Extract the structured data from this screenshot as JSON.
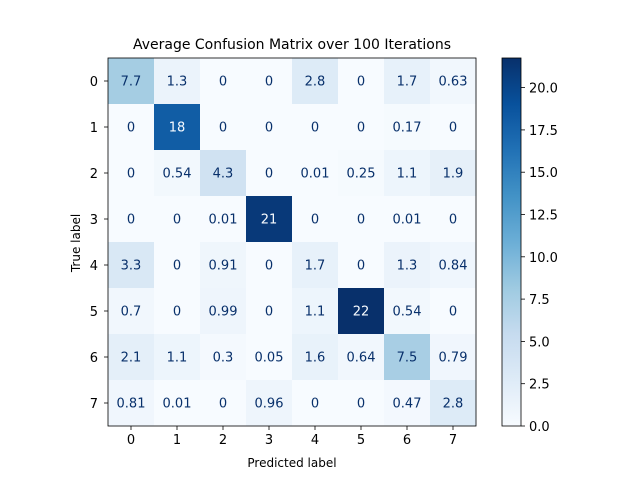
{
  "chart_data": {
    "type": "heatmap",
    "title": "Average Confusion Matrix over 100 Iterations",
    "xlabel": "Predicted label",
    "ylabel": "True label",
    "x_categories": [
      "0",
      "1",
      "2",
      "3",
      "4",
      "5",
      "6",
      "7"
    ],
    "y_categories": [
      "0",
      "1",
      "2",
      "3",
      "4",
      "5",
      "6",
      "7"
    ],
    "values": [
      [
        7.7,
        1.3,
        0,
        0,
        2.8,
        0,
        1.7,
        0.63
      ],
      [
        0,
        18,
        0,
        0,
        0,
        0,
        0.17,
        0
      ],
      [
        0,
        0.54,
        4.3,
        0,
        0.01,
        0.25,
        1.1,
        1.9
      ],
      [
        0,
        0,
        0.01,
        21,
        0,
        0,
        0.01,
        0
      ],
      [
        3.3,
        0,
        0.91,
        0,
        1.7,
        0,
        1.3,
        0.84
      ],
      [
        0.7,
        0,
        0.99,
        0,
        1.1,
        22,
        0.54,
        0
      ],
      [
        2.1,
        1.1,
        0.3,
        0.05,
        1.6,
        0.64,
        7.5,
        0.79
      ],
      [
        0.81,
        0.01,
        0,
        0.96,
        0,
        0,
        0.47,
        2.8
      ]
    ],
    "labels": [
      [
        "7.7",
        "1.3",
        "0",
        "0",
        "2.8",
        "0",
        "1.7",
        "0.63"
      ],
      [
        "0",
        "18",
        "0",
        "0",
        "0",
        "0",
        "0.17",
        "0"
      ],
      [
        "0",
        "0.54",
        "4.3",
        "0",
        "0.01",
        "0.25",
        "1.1",
        "1.9"
      ],
      [
        "0",
        "0",
        "0.01",
        "21",
        "0",
        "0",
        "0.01",
        "0"
      ],
      [
        "3.3",
        "0",
        "0.91",
        "0",
        "1.7",
        "0",
        "1.3",
        "0.84"
      ],
      [
        "0.7",
        "0",
        "0.99",
        "0",
        "1.1",
        "22",
        "0.54",
        "0"
      ],
      [
        "2.1",
        "1.1",
        "0.3",
        "0.05",
        "1.6",
        "0.64",
        "7.5",
        "0.79"
      ],
      [
        "0.81",
        "0.01",
        "0",
        "0.96",
        "0",
        "0",
        "0.47",
        "2.8"
      ]
    ],
    "colormap": "Blues",
    "colorbar": {
      "range": [
        0,
        21.75
      ],
      "ticks": [
        0.0,
        2.5,
        5.0,
        7.5,
        10.0,
        12.5,
        15.0,
        17.5,
        20.0
      ],
      "tick_labels": [
        "0.0",
        "2.5",
        "5.0",
        "7.5",
        "10.0",
        "12.5",
        "15.0",
        "17.5",
        "20.0"
      ]
    },
    "text_colors": {
      "on_light": "#08306b",
      "on_dark": "#f7fbff"
    },
    "grid": false
  }
}
